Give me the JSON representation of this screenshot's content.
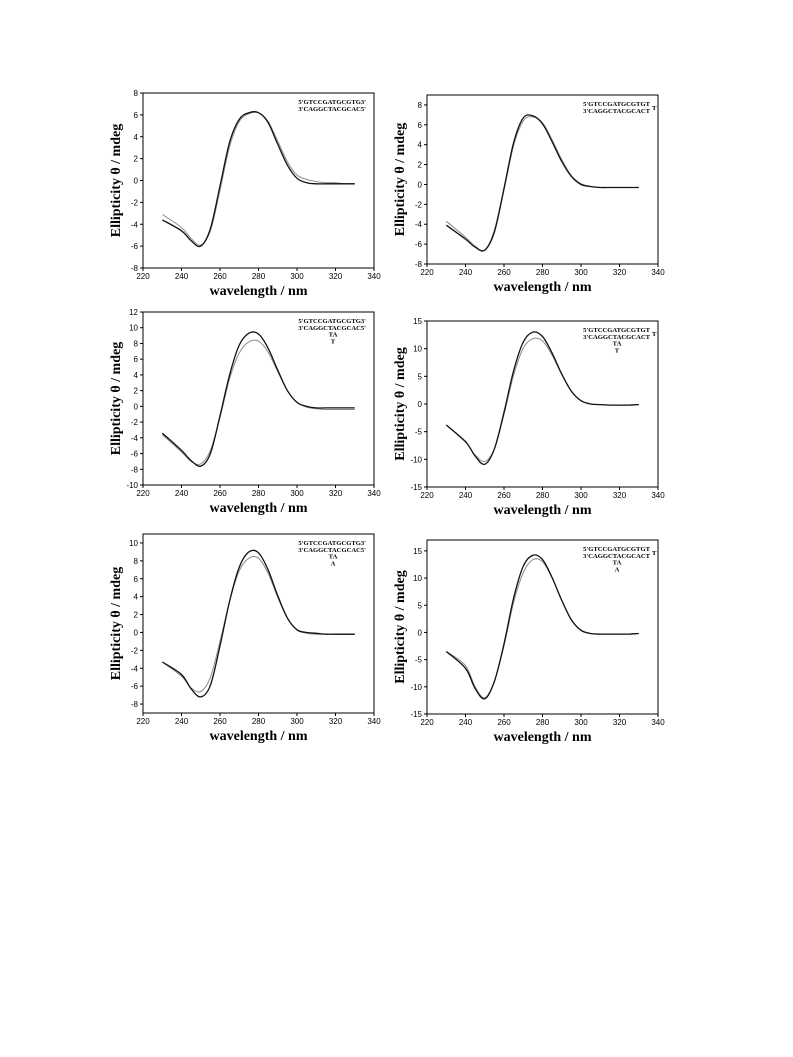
{
  "chart_data": [
    {
      "type": "line",
      "xlabel": "wavelength / nm",
      "ylabel": "Ellipticity θ / mdeg",
      "xlim": [
        220,
        340
      ],
      "ylim": [
        -8,
        8
      ],
      "xticks": [
        "220",
        "240",
        "260",
        "280",
        "300",
        "320",
        "340"
      ],
      "yticks": [
        "-8",
        "-6",
        "-4",
        "-2",
        "0",
        "2",
        "4",
        "6",
        "8"
      ],
      "annotation": [
        "5'GTCCGATGCGTG3'",
        "3'CAGGCTACGCAC5'"
      ],
      "colors": {
        "dark": "#111111",
        "light": "#8a8a8a"
      },
      "series": [
        {
          "x": [
            230,
            240,
            245,
            250,
            255,
            260,
            265,
            270,
            275,
            280,
            285,
            290,
            295,
            300,
            305,
            310,
            315,
            320,
            325,
            330
          ],
          "values": [
            -3.6,
            -4.6,
            -5.5,
            -6.0,
            -4.4,
            -0.5,
            3.5,
            5.6,
            6.2,
            6.2,
            5.3,
            3.3,
            1.4,
            0.2,
            -0.2,
            -0.3,
            -0.3,
            -0.3,
            -0.3,
            -0.3
          ]
        },
        {
          "x": [
            230,
            240,
            245,
            250,
            255,
            260,
            265,
            270,
            275,
            280,
            285,
            290,
            295,
            300,
            305,
            310,
            315,
            320,
            325,
            330
          ],
          "values": [
            -3.1,
            -4.3,
            -5.3,
            -5.9,
            -4.6,
            -0.9,
            3.1,
            5.4,
            6.1,
            6.2,
            5.4,
            3.6,
            1.7,
            0.5,
            0.1,
            -0.1,
            -0.2,
            -0.2,
            -0.3,
            -0.3
          ]
        }
      ]
    },
    {
      "type": "line",
      "xlabel": "wavelength / nm",
      "ylabel": "Ellipticity θ / mdeg",
      "xlim": [
        220,
        340
      ],
      "ylim": [
        -8,
        9
      ],
      "xticks": [
        "220",
        "240",
        "260",
        "280",
        "300",
        "320",
        "340"
      ],
      "yticks": [
        "-8",
        "-6",
        "-4",
        "-2",
        "0",
        "2",
        "4",
        "6",
        "8"
      ],
      "annotation": [
        "5'GTCCGATGCGTGT",
        "3'CAGGCTACGCACT"
      ],
      "loop": [
        "T"
      ],
      "colors": {
        "dark": "#111111",
        "light": "#8a8a8a"
      },
      "series": [
        {
          "x": [
            230,
            240,
            245,
            250,
            255,
            260,
            265,
            270,
            275,
            280,
            285,
            290,
            295,
            300,
            305,
            310,
            315,
            320,
            325,
            330
          ],
          "values": [
            -4.1,
            -5.5,
            -6.3,
            -6.6,
            -4.7,
            -0.4,
            4.2,
            6.7,
            6.9,
            6.1,
            4.3,
            2.3,
            0.8,
            0.0,
            -0.2,
            -0.3,
            -0.3,
            -0.3,
            -0.3,
            -0.3
          ]
        },
        {
          "x": [
            230,
            240,
            245,
            250,
            255,
            260,
            265,
            270,
            275,
            280,
            285,
            290,
            295,
            300,
            305,
            310,
            315,
            320,
            325,
            330
          ],
          "values": [
            -3.7,
            -5.3,
            -6.2,
            -6.6,
            -4.9,
            -0.6,
            3.9,
            6.4,
            6.8,
            6.2,
            4.5,
            2.5,
            0.9,
            0.1,
            -0.2,
            -0.3,
            -0.3,
            -0.3,
            -0.3,
            -0.3
          ]
        }
      ]
    },
    {
      "type": "line",
      "xlabel": "wavelength / nm",
      "ylabel": "Ellipticity θ / mdeg",
      "xlim": [
        220,
        340
      ],
      "ylim": [
        -10,
        12
      ],
      "xticks": [
        "220",
        "240",
        "260",
        "280",
        "300",
        "320",
        "340"
      ],
      "yticks": [
        "-10",
        "-8",
        "-6",
        "-4",
        "-2",
        "0",
        "2",
        "4",
        "6",
        "8",
        "10",
        "12"
      ],
      "annotation": [
        "5'GTCCGATGCGTG3'",
        "3'CAGGCTACGCAC5'",
        "TA",
        "T"
      ],
      "colors": {
        "dark": "#111111",
        "light": "#8a8a8a"
      },
      "series": [
        {
          "x": [
            230,
            240,
            245,
            250,
            255,
            260,
            265,
            270,
            275,
            280,
            285,
            290,
            295,
            300,
            305,
            310,
            315,
            320,
            325,
            330
          ],
          "values": [
            -3.4,
            -5.6,
            -6.9,
            -7.6,
            -6.0,
            -1.2,
            4.0,
            7.8,
            9.3,
            9.2,
            7.4,
            4.6,
            2.0,
            0.5,
            0.0,
            -0.2,
            -0.2,
            -0.2,
            -0.2,
            -0.2
          ]
        },
        {
          "x": [
            230,
            240,
            245,
            250,
            255,
            260,
            265,
            270,
            275,
            280,
            285,
            290,
            295,
            300,
            305,
            310,
            315,
            320,
            325,
            330
          ],
          "values": [
            -3.6,
            -5.8,
            -7.0,
            -7.3,
            -5.6,
            -1.4,
            3.5,
            6.8,
            8.2,
            8.3,
            6.9,
            4.4,
            2.0,
            0.5,
            -0.1,
            -0.3,
            -0.4,
            -0.4,
            -0.4,
            -0.4
          ]
        }
      ]
    },
    {
      "type": "line",
      "xlabel": "wavelength / nm",
      "ylabel": "Ellipticity θ / mdeg",
      "xlim": [
        220,
        340
      ],
      "ylim": [
        -15,
        15
      ],
      "xticks": [
        "220",
        "240",
        "260",
        "280",
        "300",
        "320",
        "340"
      ],
      "yticks": [
        "-15",
        "-10",
        "-5",
        "0",
        "5",
        "10",
        "15"
      ],
      "annotation": [
        "5'GTCCGATGCGTGT",
        "3'CAGGCTACGCACT",
        "TA",
        "T"
      ],
      "loop": [
        "T"
      ],
      "colors": {
        "dark": "#111111",
        "light": "#8a8a8a"
      },
      "series": [
        {
          "x": [
            230,
            240,
            245,
            250,
            255,
            260,
            265,
            270,
            275,
            280,
            285,
            290,
            295,
            300,
            305,
            310,
            315,
            320,
            325,
            330
          ],
          "values": [
            -3.8,
            -6.8,
            -9.4,
            -10.9,
            -8.1,
            -1.5,
            6.0,
            11.2,
            13.0,
            12.2,
            9.2,
            5.4,
            2.3,
            0.6,
            0.0,
            -0.1,
            -0.2,
            -0.2,
            -0.2,
            -0.1
          ]
        },
        {
          "x": [
            230,
            240,
            245,
            250,
            255,
            260,
            265,
            270,
            275,
            280,
            285,
            290,
            295,
            300,
            305,
            310,
            315,
            320,
            325,
            330
          ],
          "values": [
            -3.8,
            -6.9,
            -9.2,
            -10.4,
            -8.1,
            -1.9,
            5.2,
            10.1,
            11.8,
            11.4,
            8.8,
            5.3,
            2.3,
            0.6,
            0.0,
            -0.1,
            -0.2,
            -0.2,
            -0.2,
            -0.1
          ]
        }
      ]
    },
    {
      "type": "line",
      "xlabel": "wavelength / nm",
      "ylabel": "Ellipticity θ / mdeg",
      "xlim": [
        220,
        340
      ],
      "ylim": [
        -9,
        11
      ],
      "xticks": [
        "220",
        "240",
        "260",
        "280",
        "300",
        "320",
        "340"
      ],
      "yticks": [
        "-8",
        "-6",
        "-4",
        "-2",
        "0",
        "2",
        "4",
        "6",
        "8",
        "10"
      ],
      "annotation": [
        "5'GTCCGATGCGTG3'",
        "3'CAGGCTACGCAC5'",
        "TA",
        "A"
      ],
      "colors": {
        "dark": "#111111",
        "light": "#8a8a8a"
      },
      "series": [
        {
          "x": [
            230,
            240,
            245,
            250,
            255,
            260,
            265,
            270,
            275,
            280,
            285,
            290,
            295,
            300,
            305,
            310,
            315,
            320,
            325,
            330
          ],
          "values": [
            -3.3,
            -4.7,
            -6.3,
            -7.2,
            -5.9,
            -1.5,
            3.5,
            7.3,
            9.0,
            8.9,
            7.0,
            4.1,
            1.6,
            0.3,
            0.0,
            -0.1,
            -0.2,
            -0.2,
            -0.2,
            -0.2
          ]
        },
        {
          "x": [
            230,
            240,
            245,
            250,
            255,
            260,
            265,
            270,
            275,
            280,
            285,
            290,
            295,
            300,
            305,
            310,
            315,
            320,
            325,
            330
          ],
          "values": [
            -3.3,
            -4.9,
            -6.2,
            -6.6,
            -5.0,
            -1.0,
            3.5,
            6.9,
            8.3,
            8.3,
            6.6,
            3.9,
            1.6,
            0.3,
            -0.1,
            -0.2,
            -0.2,
            -0.2,
            -0.2,
            -0.2
          ]
        }
      ]
    },
    {
      "type": "line",
      "xlabel": "wavelength / nm",
      "ylabel": "Ellipticity θ / mdeg",
      "xlim": [
        220,
        340
      ],
      "ylim": [
        -15,
        17
      ],
      "xticks": [
        "220",
        "240",
        "260",
        "280",
        "300",
        "320",
        "340"
      ],
      "yticks": [
        "-15",
        "-10",
        "-5",
        "0",
        "5",
        "10",
        "15"
      ],
      "annotation": [
        "5'GTCCGATGCGTGT",
        "3'CAGGCTACGCACT",
        "TA",
        "A"
      ],
      "loop": [
        "T"
      ],
      "colors": {
        "dark": "#111111",
        "light": "#8a8a8a"
      },
      "series": [
        {
          "x": [
            230,
            240,
            245,
            250,
            255,
            260,
            265,
            270,
            275,
            280,
            285,
            290,
            295,
            300,
            305,
            310,
            315,
            320,
            325,
            330
          ],
          "values": [
            -3.5,
            -6.6,
            -10.3,
            -12.2,
            -9.0,
            -2.1,
            6.3,
            12.2,
            14.2,
            13.4,
            10.1,
            5.9,
            2.3,
            0.4,
            -0.2,
            -0.3,
            -0.3,
            -0.3,
            -0.3,
            -0.2
          ]
        },
        {
          "x": [
            230,
            240,
            245,
            250,
            255,
            260,
            265,
            270,
            275,
            280,
            285,
            290,
            295,
            300,
            305,
            310,
            315,
            320,
            325,
            330
          ],
          "values": [
            -3.5,
            -6.1,
            -10.0,
            -12.0,
            -9.0,
            -2.5,
            5.5,
            11.0,
            13.4,
            13.0,
            10.0,
            5.9,
            2.3,
            0.4,
            -0.2,
            -0.3,
            -0.3,
            -0.3,
            -0.3,
            -0.2
          ]
        }
      ]
    }
  ]
}
